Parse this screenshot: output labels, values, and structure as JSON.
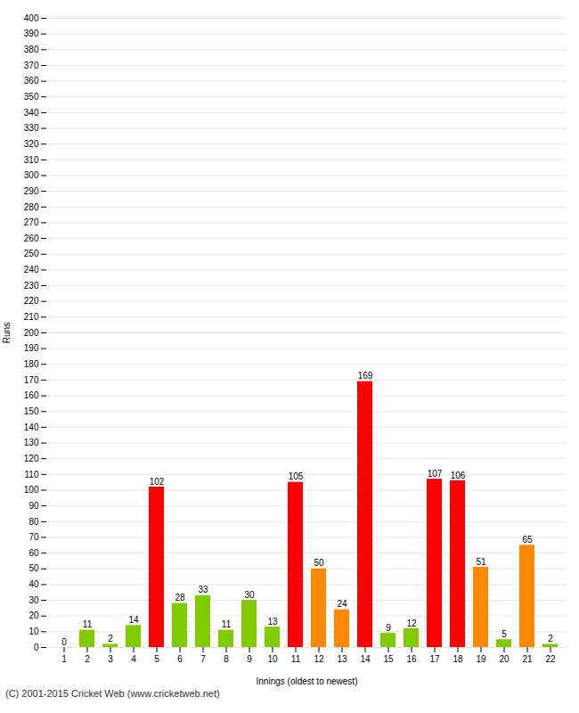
{
  "chart_data": {
    "type": "bar",
    "xlabel": "Innings (oldest to newest)",
    "ylabel": "Runs",
    "footnote": "(C) 2001-2015 Cricket Web (www.cricketweb.net)",
    "categories": [
      1,
      2,
      3,
      4,
      5,
      6,
      7,
      8,
      9,
      10,
      11,
      12,
      13,
      14,
      15,
      16,
      17,
      18,
      19,
      20,
      21,
      22
    ],
    "values": [
      0,
      11,
      2,
      14,
      102,
      28,
      33,
      11,
      30,
      13,
      105,
      50,
      24,
      169,
      9,
      12,
      107,
      106,
      51,
      5,
      65,
      2
    ],
    "colors": [
      "#80cc00",
      "#80cc00",
      "#80cc00",
      "#80cc00",
      "#ff0000",
      "#80cc00",
      "#80cc00",
      "#80cc00",
      "#80cc00",
      "#80cc00",
      "#ff0000",
      "#ff8800",
      "#ff8800",
      "#ff0000",
      "#80cc00",
      "#80cc00",
      "#ff0000",
      "#ff0000",
      "#ff8800",
      "#80cc00",
      "#ff8800",
      "#80cc00"
    ],
    "ylim": [
      0,
      400
    ],
    "yticks": [
      0,
      10,
      20,
      30,
      40,
      50,
      60,
      70,
      80,
      90,
      100,
      110,
      120,
      130,
      140,
      150,
      160,
      170,
      180,
      190,
      200,
      210,
      220,
      230,
      240,
      250,
      260,
      270,
      280,
      290,
      300,
      310,
      320,
      330,
      340,
      350,
      360,
      370,
      380,
      390,
      400
    ],
    "grid": true,
    "data_labels": true
  }
}
